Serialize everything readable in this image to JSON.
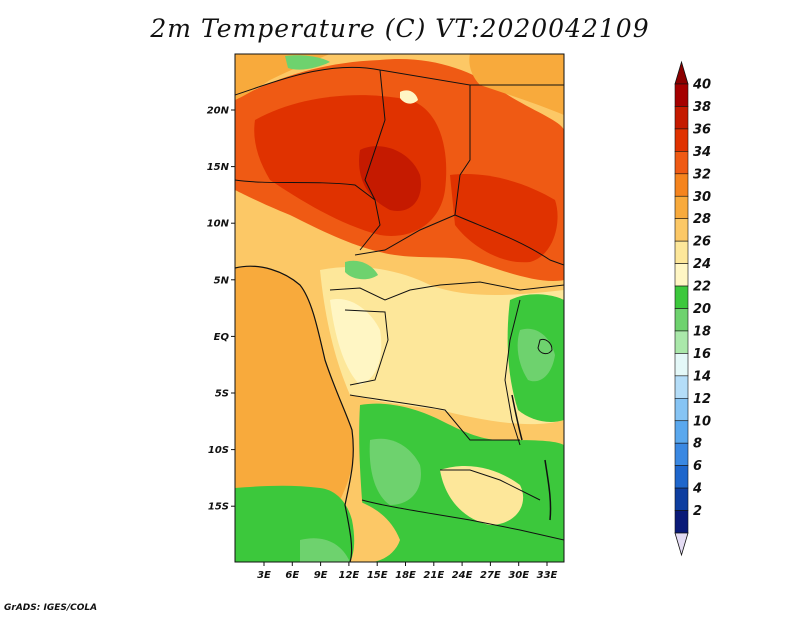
{
  "title": "2m Temperature (C) VT:2020042109",
  "credit": "GrADS: IGES/COLA",
  "lat_labels": [
    "20N",
    "15N",
    "10N",
    "5N",
    "EQ",
    "5S",
    "10S",
    "15S"
  ],
  "lon_labels": [
    "3E",
    "6E",
    "9E",
    "12E",
    "15E",
    "18E",
    "21E",
    "24E",
    "27E",
    "30E",
    "33E"
  ],
  "colorbar": {
    "labels": [
      "40",
      "38",
      "36",
      "34",
      "32",
      "30",
      "28",
      "26",
      "24",
      "22",
      "20",
      "18",
      "16",
      "14",
      "12",
      "10",
      "8",
      "6",
      "4",
      "2"
    ],
    "colors": [
      "#a50000",
      "#c51a00",
      "#e03200",
      "#ef5a14",
      "#f5841e",
      "#f8aa3c",
      "#fcc866",
      "#fde79a",
      "#fff6c4",
      "#3cc83c",
      "#6ed26e",
      "#aae8aa",
      "#e4f8f8",
      "#b4ddf8",
      "#86c4f4",
      "#5aa8ee",
      "#3a88e2",
      "#1e66cc",
      "#0e3ea0",
      "#0a1a78"
    ],
    "top_arrow_color": "#8b0000",
    "bottom_arrow_color": "#e4dcf4"
  }
}
